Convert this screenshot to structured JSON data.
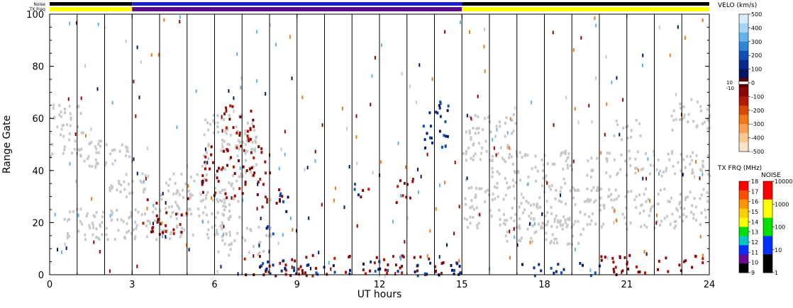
{
  "header": {
    "noise_label": "Noise",
    "txfreq_label": "TX Freq"
  },
  "chart_data": {
    "type": "heatmap",
    "xlabel": "UT hours",
    "ylabel": "Range Gate",
    "xlim": [
      0,
      24
    ],
    "ylim": [
      0,
      100
    ],
    "xticks": [
      "0",
      "3",
      "6",
      "9",
      "12",
      "15",
      "18",
      "21",
      "24"
    ],
    "yticks": [
      "0",
      "20",
      "40",
      "60",
      "80",
      "100"
    ],
    "scan_boundaries_hours": [
      1,
      2,
      3,
      4,
      5,
      6,
      7,
      8,
      9,
      10,
      11,
      12,
      13,
      14,
      15,
      16,
      17,
      18,
      19,
      20,
      21,
      22,
      23
    ],
    "tx_freq_bar": [
      {
        "start": 0,
        "end": 3,
        "color": "#ffff00"
      },
      {
        "start": 3,
        "end": 15,
        "color": "#5c0a8c"
      },
      {
        "start": 15,
        "end": 24,
        "color": "#ffff00"
      }
    ],
    "noise_bar": [
      {
        "start": 0,
        "end": 3,
        "color": "#000000"
      },
      {
        "start": 3,
        "end": 15,
        "color": "#1e1ecc"
      },
      {
        "start": 15,
        "end": 24,
        "color": "#000000"
      }
    ],
    "ground_scatter_color": "#c8c8c8",
    "scatter_regions": [
      {
        "kind": "ground",
        "x": [
          0,
          1.2
        ],
        "y": [
          44,
          66
        ]
      },
      {
        "kind": "ground",
        "x": [
          1.0,
          3.0
        ],
        "y": [
          40,
          52
        ]
      },
      {
        "kind": "ground",
        "x": [
          0.5,
          6.5
        ],
        "y": [
          14,
          26
        ]
      },
      {
        "kind": "ground",
        "x": [
          4.0,
          7.0
        ],
        "y": [
          22,
          40
        ]
      },
      {
        "kind": "ground",
        "x": [
          5.5,
          7.5
        ],
        "y": [
          38,
          62
        ]
      },
      {
        "kind": "ground",
        "x": [
          2.0,
          3.5
        ],
        "y": [
          30,
          40
        ]
      },
      {
        "kind": "ground",
        "x": [
          6.0,
          8.0
        ],
        "y": [
          8,
          20
        ]
      },
      {
        "kind": "ground",
        "x": [
          15.0,
          17.0
        ],
        "y": [
          44,
          62
        ]
      },
      {
        "kind": "ground",
        "x": [
          16.0,
          19.0
        ],
        "y": [
          34,
          48
        ]
      },
      {
        "kind": "ground",
        "x": [
          15.0,
          24.0
        ],
        "y": [
          18,
          34
        ]
      },
      {
        "kind": "ground",
        "x": [
          16.5,
          19.5
        ],
        "y": [
          12,
          22
        ]
      },
      {
        "kind": "ground",
        "x": [
          19.5,
          24.0
        ],
        "y": [
          38,
          48
        ]
      },
      {
        "kind": "ground",
        "x": [
          22.5,
          24.0
        ],
        "y": [
          56,
          68
        ]
      },
      {
        "kind": "ground",
        "x": [
          20.5,
          21.5
        ],
        "y": [
          52,
          60
        ]
      },
      {
        "kind": "neg",
        "x": [
          3.3,
          5.0
        ],
        "y": [
          16,
          30
        ]
      },
      {
        "kind": "neg",
        "x": [
          5.5,
          8.0
        ],
        "y": [
          30,
          50
        ]
      },
      {
        "kind": "neg",
        "x": [
          6.2,
          7.4
        ],
        "y": [
          46,
          66
        ]
      },
      {
        "kind": "neg",
        "x": [
          7.7,
          8.5
        ],
        "y": [
          24,
          34
        ]
      },
      {
        "kind": "neg",
        "x": [
          11.2,
          11.6
        ],
        "y": [
          28,
          36
        ]
      },
      {
        "kind": "neg",
        "x": [
          12.3,
          13.2
        ],
        "y": [
          28,
          38
        ]
      },
      {
        "kind": "neg",
        "x": [
          7.0,
          14.5
        ],
        "y": [
          0,
          8
        ]
      },
      {
        "kind": "neg",
        "x": [
          20.0,
          24.0
        ],
        "y": [
          0,
          8
        ]
      },
      {
        "kind": "pos",
        "x": [
          8.3,
          8.7
        ],
        "y": [
          20,
          32
        ]
      },
      {
        "kind": "pos",
        "x": [
          10.8,
          11.2
        ],
        "y": [
          28,
          36
        ]
      },
      {
        "kind": "pos",
        "x": [
          7.5,
          15.0
        ],
        "y": [
          0,
          6
        ]
      },
      {
        "kind": "pos",
        "x": [
          17.0,
          20.0
        ],
        "y": [
          0,
          5
        ]
      },
      {
        "kind": "pos",
        "x": [
          13.4,
          14.6
        ],
        "y": [
          48,
          68
        ]
      },
      {
        "kind": "pos",
        "x": [
          7.8,
          8.2
        ],
        "y": [
          14,
          20
        ]
      }
    ],
    "colorbars": [
      {
        "title": "VELO (km/s)",
        "ticks": [
          "500",
          "400",
          "300",
          "200",
          "100",
          "0",
          "-100",
          "-200",
          "-300",
          "-400",
          "-500"
        ],
        "extra_ticks": [
          "10",
          "-10"
        ],
        "colors": [
          "#d8ecff",
          "#a6d4f5",
          "#63b2ec",
          "#2e86d6",
          "#1050b4",
          "#082a8c",
          "#041466",
          "#5c0000",
          "#8c0606",
          "#b41a00",
          "#d84a00",
          "#f07818",
          "#f8a050",
          "#fcc890",
          "#fde4c8"
        ]
      },
      {
        "title": "TX FRQ (MHz)",
        "ticks": [
          "18",
          "17",
          "16",
          "15",
          "14",
          "13",
          "12",
          "11",
          "10",
          "9"
        ],
        "colors": [
          "#ff0000",
          "#ff5000",
          "#ff9600",
          "#ffd000",
          "#ffff00",
          "#00e000",
          "#00c8c8",
          "#0030ff",
          "#6a0a96",
          "#000000"
        ]
      },
      {
        "title": "NOISE",
        "ticks": [
          "10000",
          "1000",
          "100",
          "10",
          "1"
        ],
        "colors": [
          "#ff0000",
          "#ffff00",
          "#00e000",
          "#0030ff",
          "#000000"
        ]
      }
    ]
  }
}
